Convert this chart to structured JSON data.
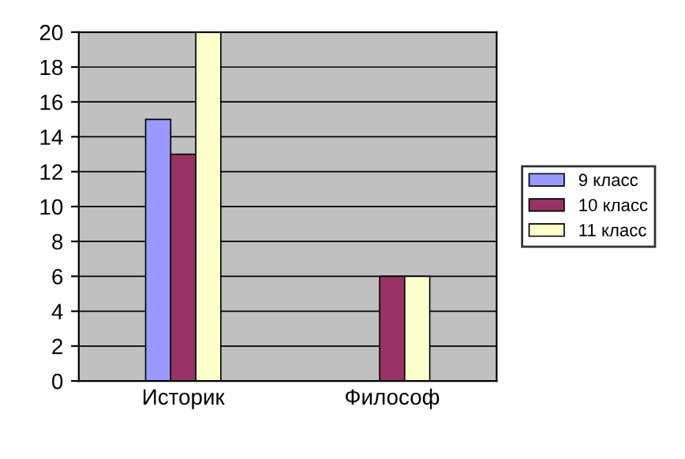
{
  "chart_data": {
    "type": "bar",
    "categories": [
      "Историк",
      "Философ"
    ],
    "series": [
      {
        "name": "9 класс",
        "color": "#9999ff",
        "values": [
          15,
          0
        ]
      },
      {
        "name": "10 класс",
        "color": "#993366",
        "values": [
          13,
          6
        ]
      },
      {
        "name": "11 класс",
        "color": "#ffffcc",
        "values": [
          20,
          6
        ]
      }
    ],
    "ylim": [
      0,
      20
    ],
    "yticks": [
      0,
      2,
      4,
      6,
      8,
      10,
      12,
      14,
      16,
      18,
      20
    ],
    "grid": "y",
    "legend": "right"
  }
}
